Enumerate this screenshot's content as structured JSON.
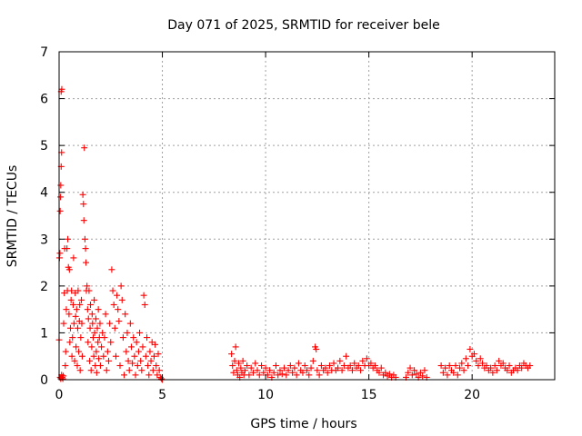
{
  "chart_data": {
    "type": "scatter",
    "title": "Day 071 of 2025, SRMTID for receiver bele",
    "xlabel": "GPS time / hours",
    "ylabel": "SRMTID / TECUs",
    "xlim": [
      0,
      24
    ],
    "ylim": [
      0,
      7
    ],
    "xticks": [
      0,
      5,
      10,
      15,
      20
    ],
    "yticks": [
      0,
      1,
      2,
      3,
      4,
      5,
      6,
      7
    ],
    "grid": true,
    "marker": "plus",
    "color": "#ff0000",
    "points": [
      [
        0.0,
        0.85
      ],
      [
        0.02,
        2.6
      ],
      [
        0.04,
        2.7
      ],
      [
        0.05,
        3.6
      ],
      [
        0.07,
        3.9
      ],
      [
        0.08,
        4.15
      ],
      [
        0.1,
        4.55
      ],
      [
        0.12,
        4.85
      ],
      [
        0.1,
        6.15
      ],
      [
        0.13,
        6.2
      ],
      [
        0.05,
        0.05
      ],
      [
        0.08,
        0.02
      ],
      [
        0.12,
        0.1
      ],
      [
        0.15,
        0.05
      ],
      [
        0.18,
        0.02
      ],
      [
        0.2,
        0.08
      ],
      [
        0.22,
        1.2
      ],
      [
        0.25,
        1.85
      ],
      [
        0.27,
        2.8
      ],
      [
        0.3,
        0.3
      ],
      [
        0.32,
        0.6
      ],
      [
        0.35,
        1.5
      ],
      [
        0.38,
        2.8
      ],
      [
        0.4,
        1.9
      ],
      [
        0.42,
        3.0
      ],
      [
        0.45,
        2.4
      ],
      [
        0.48,
        1.4
      ],
      [
        0.5,
        2.35
      ],
      [
        0.52,
        0.8
      ],
      [
        0.55,
        1.1
      ],
      [
        0.58,
        1.7
      ],
      [
        0.6,
        1.9
      ],
      [
        0.62,
        0.5
      ],
      [
        0.65,
        0.9
      ],
      [
        0.68,
        1.6
      ],
      [
        0.7,
        2.6
      ],
      [
        0.72,
        1.2
      ],
      [
        0.75,
        0.4
      ],
      [
        0.78,
        1.85
      ],
      [
        0.8,
        1.35
      ],
      [
        0.82,
        0.7
      ],
      [
        0.85,
        1.5
      ],
      [
        0.88,
        0.3
      ],
      [
        0.9,
        1.1
      ],
      [
        0.92,
        1.9
      ],
      [
        0.95,
        0.6
      ],
      [
        0.98,
        1.25
      ],
      [
        1.0,
        1.6
      ],
      [
        1.02,
        0.2
      ],
      [
        1.05,
        0.9
      ],
      [
        1.08,
        1.7
      ],
      [
        1.1,
        1.2
      ],
      [
        1.12,
        0.5
      ],
      [
        1.15,
        3.95
      ],
      [
        1.18,
        3.75
      ],
      [
        1.2,
        3.4
      ],
      [
        1.22,
        4.95
      ],
      [
        1.25,
        3.0
      ],
      [
        1.28,
        2.8
      ],
      [
        1.3,
        2.5
      ],
      [
        1.32,
        1.9
      ],
      [
        1.35,
        2.0
      ],
      [
        1.38,
        1.5
      ],
      [
        1.4,
        0.8
      ],
      [
        1.42,
        1.3
      ],
      [
        1.45,
        1.9
      ],
      [
        1.48,
        0.4
      ],
      [
        1.5,
        1.1
      ],
      [
        1.52,
        1.6
      ],
      [
        1.55,
        0.2
      ],
      [
        1.58,
        0.7
      ],
      [
        1.6,
        1.4
      ],
      [
        1.62,
        1.2
      ],
      [
        1.65,
        0.9
      ],
      [
        1.68,
        0.5
      ],
      [
        1.7,
        1.7
      ],
      [
        1.72,
        1.0
      ],
      [
        1.75,
        0.3
      ],
      [
        1.78,
        1.3
      ],
      [
        1.8,
        0.6
      ],
      [
        1.82,
        0.15
      ],
      [
        1.85,
        1.1
      ],
      [
        1.88,
        0.8
      ],
      [
        1.9,
        1.5
      ],
      [
        1.92,
        0.45
      ],
      [
        1.95,
        0.9
      ],
      [
        1.98,
        1.2
      ],
      [
        2.0,
        0.3
      ],
      [
        2.05,
        0.7
      ],
      [
        2.1,
        1.0
      ],
      [
        2.15,
        0.5
      ],
      [
        2.2,
        0.9
      ],
      [
        2.25,
        1.4
      ],
      [
        2.3,
        0.2
      ],
      [
        2.35,
        0.6
      ],
      [
        2.4,
        0.4
      ],
      [
        2.45,
        1.2
      ],
      [
        2.5,
        0.8
      ],
      [
        2.55,
        2.35
      ],
      [
        2.6,
        1.9
      ],
      [
        2.65,
        1.6
      ],
      [
        2.7,
        1.1
      ],
      [
        2.75,
        0.5
      ],
      [
        2.8,
        1.8
      ],
      [
        2.85,
        1.5
      ],
      [
        2.9,
        1.25
      ],
      [
        2.95,
        0.3
      ],
      [
        3.0,
        2.0
      ],
      [
        3.05,
        1.7
      ],
      [
        3.1,
        0.9
      ],
      [
        3.15,
        0.1
      ],
      [
        3.2,
        1.4
      ],
      [
        3.25,
        0.6
      ],
      [
        3.3,
        1.0
      ],
      [
        3.35,
        0.4
      ],
      [
        3.4,
        0.2
      ],
      [
        3.45,
        1.2
      ],
      [
        3.5,
        0.7
      ],
      [
        3.55,
        0.35
      ],
      [
        3.6,
        0.9
      ],
      [
        3.65,
        0.5
      ],
      [
        3.7,
        0.1
      ],
      [
        3.75,
        0.8
      ],
      [
        3.8,
        0.3
      ],
      [
        3.85,
        0.6
      ],
      [
        3.9,
        1.0
      ],
      [
        3.95,
        0.4
      ],
      [
        4.0,
        0.2
      ],
      [
        4.05,
        0.7
      ],
      [
        4.1,
        1.8
      ],
      [
        4.15,
        1.6
      ],
      [
        4.2,
        0.5
      ],
      [
        4.25,
        0.9
      ],
      [
        4.3,
        0.3
      ],
      [
        4.35,
        0.1
      ],
      [
        4.4,
        0.6
      ],
      [
        4.45,
        0.4
      ],
      [
        4.5,
        0.8
      ],
      [
        4.55,
        0.2
      ],
      [
        4.6,
        0.5
      ],
      [
        4.65,
        0.75
      ],
      [
        4.7,
        0.3
      ],
      [
        4.75,
        0.1
      ],
      [
        4.8,
        0.55
      ],
      [
        4.85,
        0.2
      ],
      [
        4.9,
        0.05
      ],
      [
        4.95,
        0.02
      ],
      [
        5.0,
        0.0
      ],
      [
        8.35,
        0.55
      ],
      [
        8.4,
        0.3
      ],
      [
        8.45,
        0.15
      ],
      [
        8.5,
        0.4
      ],
      [
        8.55,
        0.7
      ],
      [
        8.6,
        0.2
      ],
      [
        8.65,
        0.1
      ],
      [
        8.7,
        0.35
      ],
      [
        8.75,
        0.05
      ],
      [
        8.8,
        0.25
      ],
      [
        8.85,
        0.15
      ],
      [
        8.9,
        0.4
      ],
      [
        8.95,
        0.1
      ],
      [
        9.0,
        0.2
      ],
      [
        9.1,
        0.3
      ],
      [
        9.2,
        0.1
      ],
      [
        9.3,
        0.25
      ],
      [
        9.4,
        0.15
      ],
      [
        9.5,
        0.35
      ],
      [
        9.6,
        0.2
      ],
      [
        9.7,
        0.1
      ],
      [
        9.8,
        0.3
      ],
      [
        9.9,
        0.15
      ],
      [
        10.0,
        0.25
      ],
      [
        10.1,
        0.1
      ],
      [
        10.2,
        0.2
      ],
      [
        10.3,
        0.05
      ],
      [
        10.4,
        0.15
      ],
      [
        10.5,
        0.3
      ],
      [
        10.6,
        0.1
      ],
      [
        10.7,
        0.2
      ],
      [
        10.8,
        0.12
      ],
      [
        10.9,
        0.25
      ],
      [
        11.0,
        0.1
      ],
      [
        11.1,
        0.2
      ],
      [
        11.2,
        0.3
      ],
      [
        11.3,
        0.15
      ],
      [
        11.4,
        0.25
      ],
      [
        11.5,
        0.1
      ],
      [
        11.6,
        0.35
      ],
      [
        11.7,
        0.2
      ],
      [
        11.8,
        0.15
      ],
      [
        11.9,
        0.3
      ],
      [
        12.0,
        0.2
      ],
      [
        12.1,
        0.1
      ],
      [
        12.2,
        0.25
      ],
      [
        12.3,
        0.4
      ],
      [
        12.4,
        0.7
      ],
      [
        12.45,
        0.65
      ],
      [
        12.5,
        0.2
      ],
      [
        12.6,
        0.1
      ],
      [
        12.7,
        0.3
      ],
      [
        12.8,
        0.2
      ],
      [
        12.9,
        0.25
      ],
      [
        13.0,
        0.15
      ],
      [
        13.1,
        0.3
      ],
      [
        13.2,
        0.2
      ],
      [
        13.3,
        0.35
      ],
      [
        13.4,
        0.2
      ],
      [
        13.5,
        0.25
      ],
      [
        13.6,
        0.4
      ],
      [
        13.7,
        0.2
      ],
      [
        13.8,
        0.3
      ],
      [
        13.9,
        0.5
      ],
      [
        14.0,
        0.25
      ],
      [
        14.1,
        0.3
      ],
      [
        14.2,
        0.2
      ],
      [
        14.3,
        0.35
      ],
      [
        14.4,
        0.25
      ],
      [
        14.5,
        0.3
      ],
      [
        14.6,
        0.2
      ],
      [
        14.7,
        0.4
      ],
      [
        14.8,
        0.3
      ],
      [
        14.9,
        0.45
      ],
      [
        15.0,
        0.3
      ],
      [
        15.1,
        0.35
      ],
      [
        15.2,
        0.25
      ],
      [
        15.3,
        0.3
      ],
      [
        15.4,
        0.2
      ],
      [
        15.5,
        0.15
      ],
      [
        15.6,
        0.25
      ],
      [
        15.7,
        0.1
      ],
      [
        15.8,
        0.15
      ],
      [
        15.9,
        0.08
      ],
      [
        16.0,
        0.12
      ],
      [
        16.1,
        0.05
      ],
      [
        16.2,
        0.1
      ],
      [
        16.3,
        0.05
      ],
      [
        16.8,
        0.05
      ],
      [
        16.9,
        0.15
      ],
      [
        17.0,
        0.25
      ],
      [
        17.1,
        0.1
      ],
      [
        17.2,
        0.2
      ],
      [
        17.3,
        0.12
      ],
      [
        17.4,
        0.05
      ],
      [
        17.5,
        0.15
      ],
      [
        17.6,
        0.08
      ],
      [
        17.7,
        0.2
      ],
      [
        17.8,
        0.05
      ],
      [
        18.5,
        0.3
      ],
      [
        18.6,
        0.15
      ],
      [
        18.7,
        0.25
      ],
      [
        18.8,
        0.1
      ],
      [
        18.9,
        0.3
      ],
      [
        19.0,
        0.2
      ],
      [
        19.1,
        0.15
      ],
      [
        19.2,
        0.3
      ],
      [
        19.3,
        0.1
      ],
      [
        19.4,
        0.25
      ],
      [
        19.5,
        0.35
      ],
      [
        19.6,
        0.2
      ],
      [
        19.7,
        0.45
      ],
      [
        19.8,
        0.3
      ],
      [
        19.9,
        0.65
      ],
      [
        20.0,
        0.5
      ],
      [
        20.1,
        0.55
      ],
      [
        20.2,
        0.4
      ],
      [
        20.3,
        0.3
      ],
      [
        20.4,
        0.45
      ],
      [
        20.5,
        0.35
      ],
      [
        20.6,
        0.25
      ],
      [
        20.7,
        0.3
      ],
      [
        20.8,
        0.2
      ],
      [
        20.9,
        0.25
      ],
      [
        21.0,
        0.15
      ],
      [
        21.1,
        0.3
      ],
      [
        21.2,
        0.2
      ],
      [
        21.3,
        0.4
      ],
      [
        21.4,
        0.3
      ],
      [
        21.5,
        0.35
      ],
      [
        21.6,
        0.25
      ],
      [
        21.7,
        0.2
      ],
      [
        21.8,
        0.3
      ],
      [
        21.9,
        0.15
      ],
      [
        22.0,
        0.2
      ],
      [
        22.1,
        0.25
      ],
      [
        22.2,
        0.2
      ],
      [
        22.3,
        0.3
      ],
      [
        22.4,
        0.25
      ],
      [
        22.5,
        0.35
      ],
      [
        22.6,
        0.3
      ],
      [
        22.7,
        0.25
      ],
      [
        22.8,
        0.3
      ]
    ]
  }
}
